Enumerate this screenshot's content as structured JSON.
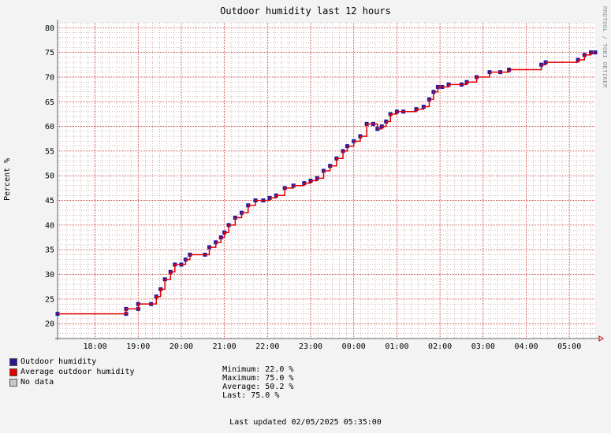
{
  "chart_data": {
    "type": "line",
    "title": "Outdoor humidity last 12 hours",
    "ylabel": "Percent  %",
    "xlabel": "",
    "ylim": [
      17,
      81
    ],
    "yticks": [
      20,
      25,
      30,
      35,
      40,
      45,
      50,
      55,
      60,
      65,
      70,
      75,
      80
    ],
    "x_tick_labels": [
      "18:00",
      "19:00",
      "20:00",
      "21:00",
      "22:00",
      "23:00",
      "00:00",
      "01:00",
      "02:00",
      "03:00",
      "04:00",
      "05:00"
    ],
    "x_range_hours": [
      17.13,
      29.6
    ],
    "x_hours": [
      17.13,
      18.72,
      18.72,
      19.0,
      19.0,
      19.3,
      19.42,
      19.52,
      19.62,
      19.75,
      19.85,
      20.0,
      20.1,
      20.2,
      20.55,
      20.65,
      20.8,
      20.92,
      21.0,
      21.1,
      21.25,
      21.4,
      21.55,
      21.72,
      21.9,
      22.05,
      22.2,
      22.4,
      22.6,
      22.85,
      23.0,
      23.15,
      23.3,
      23.45,
      23.6,
      23.75,
      23.85,
      24.0,
      24.15,
      24.3,
      24.45,
      24.55,
      24.65,
      24.75,
      24.85,
      25.0,
      25.15,
      25.45,
      25.62,
      25.75,
      25.85,
      25.95,
      26.05,
      26.2,
      26.5,
      26.62,
      26.85,
      27.15,
      27.4,
      27.6,
      28.35,
      28.45,
      29.2,
      29.35,
      29.5,
      29.6
    ],
    "series": [
      {
        "name": "Outdoor humidity",
        "color": "#1a1aa6",
        "values": [
          22,
          22,
          23,
          23,
          24,
          24,
          25.5,
          27,
          29,
          30.5,
          32,
          32,
          33,
          34,
          34,
          35.5,
          36.5,
          37.5,
          38.5,
          40,
          41.5,
          42.5,
          44,
          45,
          45,
          45.5,
          46,
          47.5,
          48,
          48.5,
          49,
          49.5,
          51,
          52,
          53.5,
          55,
          56,
          57,
          58,
          60.5,
          60.5,
          59.5,
          60,
          61,
          62.5,
          63,
          63,
          63.5,
          64,
          65.5,
          67,
          68,
          68,
          68.5,
          68.5,
          69,
          70,
          71,
          71,
          71.5,
          72.5,
          73,
          73.5,
          74.5,
          75,
          75
        ]
      },
      {
        "name": "Average outdoor humidity",
        "color": "#e00000",
        "values": [
          22,
          22,
          23,
          23,
          24,
          24,
          25.5,
          27,
          29,
          30.5,
          32,
          32,
          33,
          34,
          34,
          35.5,
          36.5,
          37.5,
          38.5,
          40,
          41.5,
          42.5,
          44,
          45,
          45,
          45.5,
          46,
          47.5,
          48,
          48.5,
          49,
          49.5,
          51,
          52,
          53.5,
          55,
          56,
          57,
          58,
          60.5,
          60.5,
          59.5,
          60,
          61,
          62.5,
          63,
          63,
          63.5,
          64,
          65.5,
          67,
          68,
          68,
          68.5,
          68.5,
          69,
          70,
          71,
          71,
          71.5,
          72.5,
          73,
          73.5,
          74.5,
          75,
          75
        ]
      }
    ]
  },
  "legend": [
    {
      "label": "Outdoor humidity",
      "color": "#2a1a8f"
    },
    {
      "label": "Average outdoor humidity",
      "color": "#e00000"
    },
    {
      "label": "No data",
      "color": "#c8c8c8"
    }
  ],
  "stats": {
    "minimum": "Minimum: 22.0 %",
    "maximum": "Maximum: 75.0 %",
    "average": "Average: 50.2 %",
    "last": "Last: 75.0 %"
  },
  "footer": {
    "updated": "Last updated 02/05/2025 05:35:00"
  },
  "side_text": "RRDTOOL / TOBI OETIKER",
  "colors": {
    "background": "#f3f3f3",
    "plot_bg": "#ffffff",
    "grid_minor": "#b98c8c",
    "grid_major": "#c22a2a"
  }
}
